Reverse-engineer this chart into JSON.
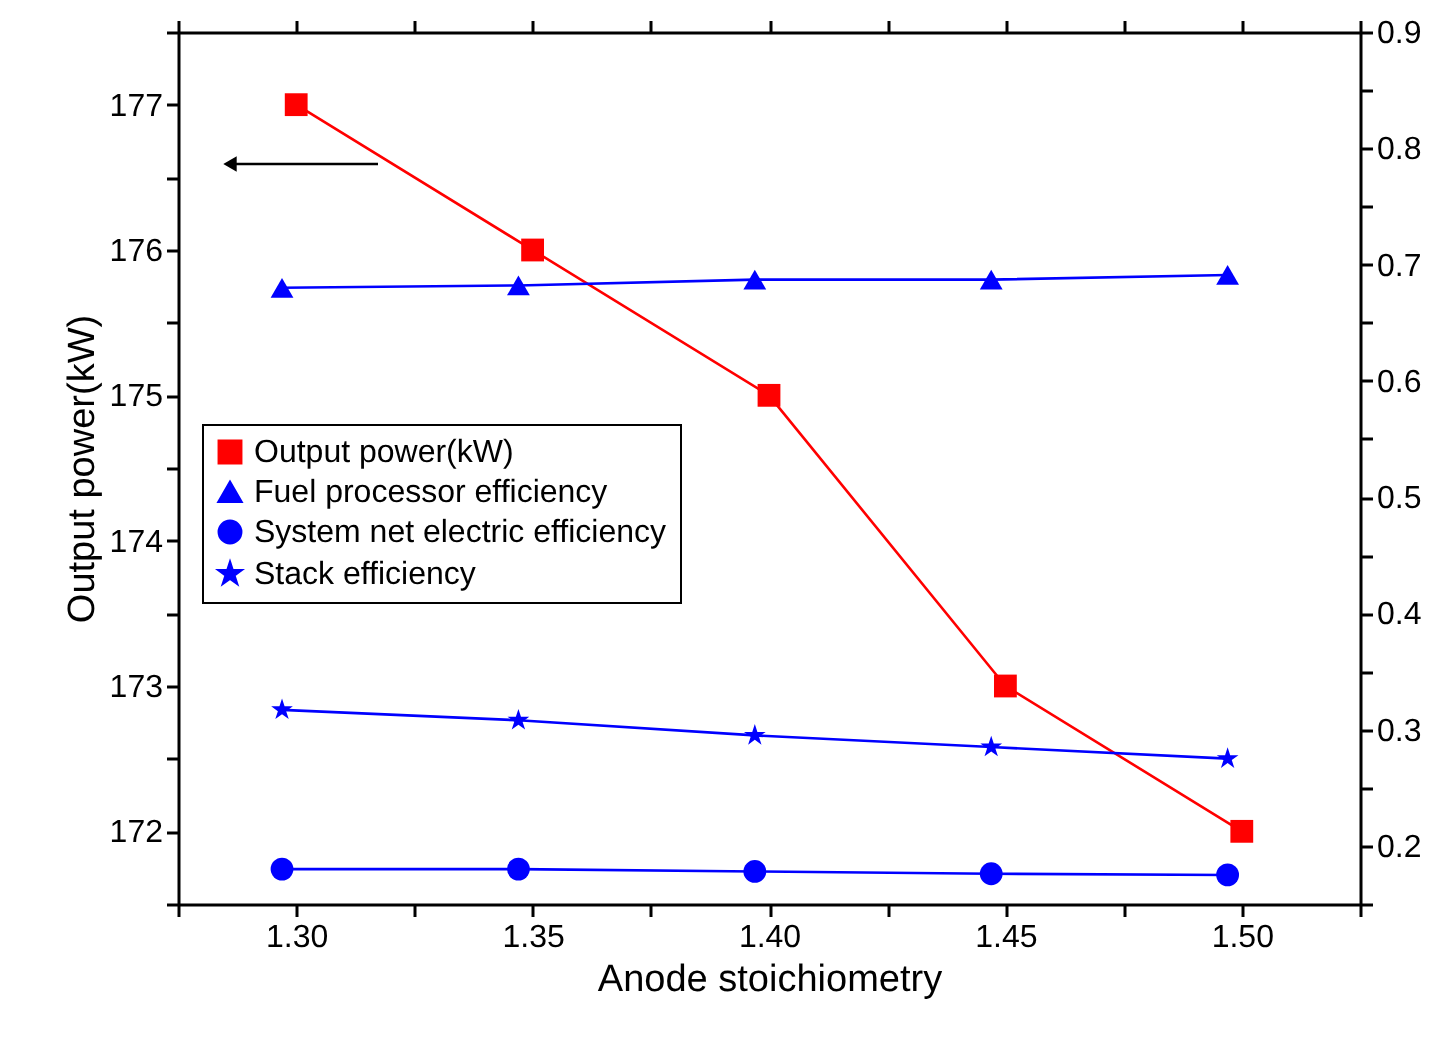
{
  "chart_data": {
    "type": "line",
    "xlabel": "Anode stoichiometry",
    "ylabel": "Output power(kW)",
    "xlim": [
      1.275,
      1.525
    ],
    "xticks": [
      {
        "value": 1.275,
        "label": null
      },
      {
        "value": 1.3,
        "label": "1.30"
      },
      {
        "value": 1.325,
        "label": null
      },
      {
        "value": 1.35,
        "label": "1.35"
      },
      {
        "value": 1.375,
        "label": null
      },
      {
        "value": 1.4,
        "label": "1.40"
      },
      {
        "value": 1.425,
        "label": null
      },
      {
        "value": 1.45,
        "label": "1.45"
      },
      {
        "value": 1.475,
        "label": null
      },
      {
        "value": 1.5,
        "label": "1.50"
      },
      {
        "value": 1.525,
        "label": null
      }
    ],
    "ylim": [
      171.5,
      177.5
    ],
    "yticks": [
      {
        "value": 171.5,
        "label": null
      },
      172,
      {
        "value": 172.5,
        "label": null
      },
      173,
      {
        "value": 173.5,
        "label": null
      },
      174,
      {
        "value": 174.5,
        "label": null
      },
      175,
      {
        "value": 175.5,
        "label": null
      },
      176,
      {
        "value": 176.5,
        "label": null
      },
      177,
      {
        "value": 177.5,
        "label": null
      }
    ],
    "y2lim": [
      0.15,
      0.9
    ],
    "y2ticks": [
      {
        "value": 0.15,
        "label": null
      },
      0.2,
      {
        "value": 0.25,
        "label": null
      },
      0.3,
      {
        "value": 0.35,
        "label": null
      },
      0.4,
      {
        "value": 0.45,
        "label": null
      },
      0.5,
      {
        "value": 0.55,
        "label": null
      },
      0.6,
      {
        "value": 0.65,
        "label": null
      },
      0.7,
      {
        "value": 0.75,
        "label": null
      },
      0.8,
      {
        "value": 0.85,
        "label": null
      },
      0.9
    ],
    "grid": false,
    "legend": "left",
    "line_style": "solid",
    "series": [
      {
        "name": "Output power(kW)",
        "color": "#ff0000",
        "marker": "square",
        "x": [
          1.3,
          1.35,
          1.4,
          1.45,
          1.5
        ],
        "values": [
          177,
          176,
          175,
          173,
          172
        ]
      },
      {
        "name": "Fuel processor efficiency",
        "color": "#0000ff",
        "marker": "triangle",
        "axis": "y2",
        "x": [
          1.297,
          1.347,
          1.397,
          1.447,
          1.497
        ],
        "values": [
          0.68,
          0.682,
          0.687,
          0.687,
          0.691
        ]
      },
      {
        "name": "System net electric efficiency",
        "color": "#0000ff",
        "marker": "circle",
        "axis": "y2",
        "x": [
          1.297,
          1.347,
          1.397,
          1.447,
          1.497
        ],
        "values": [
          0.18,
          0.18,
          0.178,
          0.176,
          0.175
        ]
      },
      {
        "name": "Stack efficiency",
        "color": "#0000ff",
        "marker": "star",
        "axis": "y2",
        "x": [
          1.297,
          1.347,
          1.397,
          1.447,
          1.497
        ],
        "values": [
          0.317,
          0.308,
          0.295,
          0.285,
          0.275
        ]
      }
    ]
  }
}
